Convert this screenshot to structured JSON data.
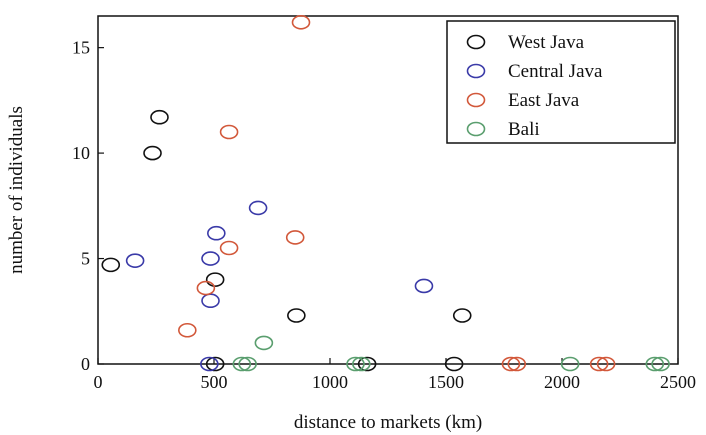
{
  "chart_data": {
    "type": "scatter",
    "title": "",
    "xlabel": "distance to markets (km)",
    "ylabel": "number of individuals",
    "xlim": [
      0,
      2500
    ],
    "ylim": [
      0,
      16.5
    ],
    "xticks": [
      0,
      500,
      1000,
      1500,
      2000,
      2500
    ],
    "yticks": [
      0,
      5,
      10,
      15
    ],
    "x_tick_labels": [
      "0",
      "500",
      "1000",
      "1500",
      "2000",
      "2500"
    ],
    "y_tick_labels": [
      "0",
      "5",
      "10",
      "15"
    ],
    "grid": false,
    "legend_position": "top-right",
    "marker": "open-circle",
    "series": [
      {
        "name": "West Java",
        "color": "#111111",
        "points": [
          {
            "x": 55,
            "y": 4.7
          },
          {
            "x": 235,
            "y": 10.0
          },
          {
            "x": 265,
            "y": 11.7
          },
          {
            "x": 505,
            "y": 4.0
          },
          {
            "x": 505,
            "y": 0
          },
          {
            "x": 855,
            "y": 2.3
          },
          {
            "x": 1160,
            "y": 0
          },
          {
            "x": 1535,
            "y": 0
          },
          {
            "x": 1570,
            "y": 2.3
          }
        ]
      },
      {
        "name": "Central Java",
        "color": "#3a3aa8",
        "points": [
          {
            "x": 160,
            "y": 4.9
          },
          {
            "x": 485,
            "y": 5.0
          },
          {
            "x": 485,
            "y": 3.0
          },
          {
            "x": 510,
            "y": 6.2
          },
          {
            "x": 480,
            "y": 0
          },
          {
            "x": 690,
            "y": 7.4
          },
          {
            "x": 1405,
            "y": 3.7
          }
        ]
      },
      {
        "name": "East Java",
        "color": "#d2583a",
        "points": [
          {
            "x": 385,
            "y": 1.6
          },
          {
            "x": 465,
            "y": 3.6
          },
          {
            "x": 565,
            "y": 5.5
          },
          {
            "x": 565,
            "y": 11.0
          },
          {
            "x": 850,
            "y": 6.0
          },
          {
            "x": 875,
            "y": 16.2
          },
          {
            "x": 1780,
            "y": 0
          },
          {
            "x": 1805,
            "y": 0
          },
          {
            "x": 2160,
            "y": 0
          },
          {
            "x": 2190,
            "y": 0
          }
        ]
      },
      {
        "name": "Bali",
        "color": "#5a9e6e",
        "points": [
          {
            "x": 620,
            "y": 0
          },
          {
            "x": 645,
            "y": 0
          },
          {
            "x": 715,
            "y": 1.0
          },
          {
            "x": 1110,
            "y": 0
          },
          {
            "x": 1135,
            "y": 0
          },
          {
            "x": 2035,
            "y": 0
          },
          {
            "x": 2400,
            "y": 0
          },
          {
            "x": 2425,
            "y": 0
          }
        ]
      }
    ]
  }
}
